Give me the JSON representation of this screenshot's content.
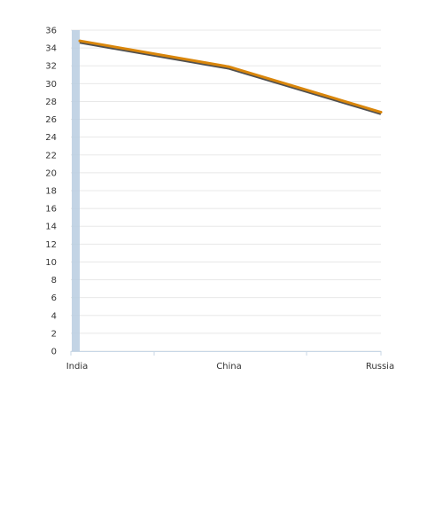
{
  "chart_data": {
    "type": "line",
    "categories": [
      "India",
      "China",
      "Russia"
    ],
    "series": [
      {
        "values": [
          34.8,
          31.9,
          26.8
        ]
      }
    ],
    "ylim": [
      0,
      36
    ],
    "yticks": [
      "0",
      "2",
      "4",
      "6",
      "8",
      "10",
      "12",
      "14",
      "16",
      "18",
      "20",
      "22",
      "24",
      "26",
      "28",
      "30",
      "32",
      "34",
      "36"
    ],
    "grid": true,
    "colors": {
      "line": "#d9860b",
      "line_shadow": "#3d3d3d",
      "crosshair": "#b8cde0",
      "grid": "#e8e8e8",
      "axis": "#c8d7e6"
    }
  }
}
